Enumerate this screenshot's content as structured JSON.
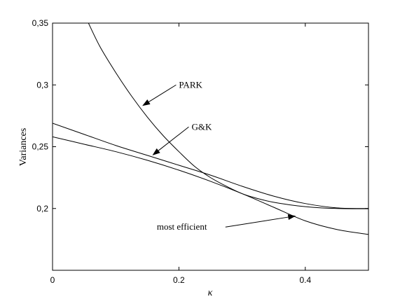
{
  "chart_data": {
    "type": "line",
    "title": "",
    "xlabel": "κ",
    "ylabel": "Variances",
    "xlim": [
      0,
      0.5
    ],
    "ylim": [
      0.15,
      0.35
    ],
    "xticks": [
      0,
      0.2,
      0.4
    ],
    "xtick_labels": [
      "0",
      "0.2",
      "0.4"
    ],
    "yticks": [
      0.2,
      0.25,
      0.3,
      0.35
    ],
    "ytick_labels": [
      "0,2",
      "0,25",
      "0,3",
      "0,35"
    ],
    "grid": false,
    "series": [
      {
        "name": "PARK",
        "x": [
          0.055,
          0.075,
          0.1,
          0.125,
          0.15,
          0.175,
          0.2,
          0.225,
          0.25,
          0.275,
          0.3,
          0.325,
          0.35,
          0.375,
          0.4,
          0.425,
          0.45,
          0.475,
          0.5
        ],
        "y": [
          0.352,
          0.331,
          0.31,
          0.291,
          0.274,
          0.259,
          0.246,
          0.234,
          0.225,
          0.218,
          0.212,
          0.208,
          0.205,
          0.203,
          0.2015,
          0.2005,
          0.2,
          0.1998,
          0.1998
        ]
      },
      {
        "name": "G&K",
        "x": [
          0,
          0.05,
          0.1,
          0.15,
          0.2,
          0.25,
          0.3,
          0.35,
          0.4,
          0.45,
          0.5
        ],
        "y": [
          0.269,
          0.26,
          0.251,
          0.243,
          0.235,
          0.227,
          0.218,
          0.21,
          0.204,
          0.2005,
          0.2
        ]
      },
      {
        "name": "most efficient",
        "x": [
          0,
          0.05,
          0.1,
          0.15,
          0.2,
          0.25,
          0.3,
          0.35,
          0.4,
          0.45,
          0.5
        ],
        "y": [
          0.258,
          0.252,
          0.246,
          0.239,
          0.231,
          0.222,
          0.212,
          0.201,
          0.19,
          0.183,
          0.179
        ]
      }
    ],
    "annotations": [
      {
        "text": "PARK",
        "x": 0.2,
        "y": 0.3,
        "arrow_to": [
          0.142,
          0.283
        ]
      },
      {
        "text": "G&K",
        "x": 0.22,
        "y": 0.266,
        "arrow_to": [
          0.158,
          0.243
        ]
      },
      {
        "text": "most efficient",
        "x": 0.165,
        "y": 0.185,
        "arrow_to": [
          0.385,
          0.194
        ]
      }
    ]
  }
}
